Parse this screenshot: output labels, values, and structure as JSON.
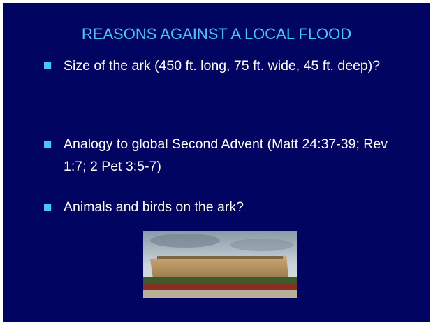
{
  "slide": {
    "title": "REASONS AGAINST A LOCAL FLOOD",
    "bullets": [
      "Size of the ark (450 ft. long, 75 ft. wide, 45 ft. deep)?",
      "Analogy to global Second Advent (Matt 24:37-39; Rev 1:7; 2 Pet 3:5-7)",
      "Animals and birds on the ark?"
    ]
  }
}
